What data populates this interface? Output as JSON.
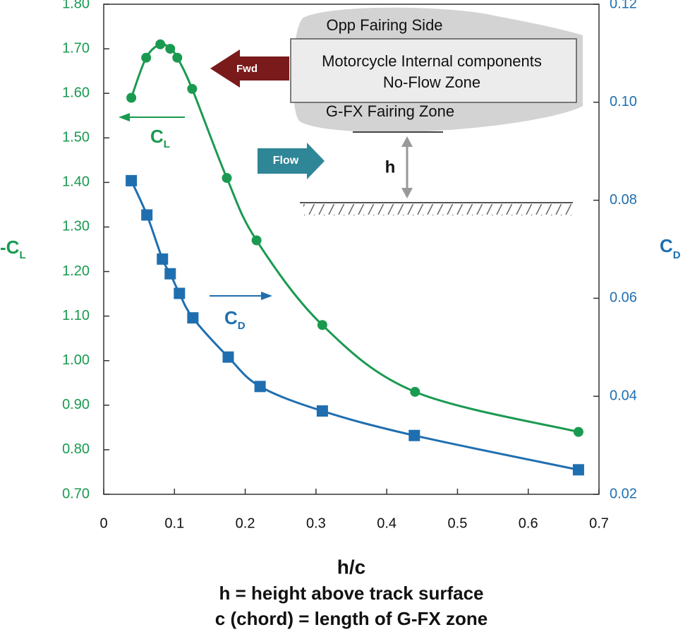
{
  "chart_data": {
    "type": "line",
    "xlabel": "h/c",
    "notes": [
      "h = height above track surface",
      "c (chord) = length of G-FX zone"
    ],
    "ylabel": {
      "main": "-C",
      "sub": "L"
    },
    "y2label": {
      "main": "C",
      "sub": "D"
    },
    "xlim": [
      0,
      0.7
    ],
    "xticks": [
      0,
      0.1,
      0.2,
      0.3,
      0.4,
      0.5,
      0.6,
      0.7
    ],
    "ylim": [
      0.7,
      1.8
    ],
    "yticks": [
      {
        "value": 0.7,
        "label": "0.70"
      },
      {
        "value": 0.8,
        "label": "0.80"
      },
      {
        "value": 0.9,
        "label": "0.90"
      },
      {
        "value": 1.0,
        "label": "1.00"
      },
      {
        "value": 1.1,
        "label": "1.10"
      },
      {
        "value": 1.2,
        "label": "1.20"
      },
      {
        "value": 1.3,
        "label": "1.30"
      },
      {
        "value": 1.4,
        "label": "1.40"
      },
      {
        "value": 1.5,
        "label": "1.50"
      },
      {
        "value": 1.6,
        "label": "1.60"
      },
      {
        "value": 1.7,
        "label": "1.70"
      },
      {
        "value": 1.8,
        "label": "1.80"
      }
    ],
    "y2lim": [
      0.02,
      0.12
    ],
    "y2ticks": [
      0.02,
      0.04,
      0.06,
      0.08,
      {
        "value": 0.1,
        "label": "0.10"
      },
      0.12
    ],
    "series": [
      {
        "name": "C",
        "sub": "L",
        "color": "#1a9a50",
        "marker": "circle",
        "x": [
          0.039,
          0.06,
          0.08,
          0.094,
          0.104,
          0.125,
          0.174,
          0.216,
          0.309,
          0.44,
          0.671
        ],
        "values": [
          1.59,
          1.68,
          1.71,
          1.7,
          1.68,
          1.61,
          1.41,
          1.27,
          1.08,
          0.93,
          0.84
        ]
      },
      {
        "name": "C",
        "sub": "D",
        "color": "#1f6fb0",
        "marker": "square",
        "axis": "y2",
        "x": [
          0.039,
          0.061,
          0.083,
          0.094,
          0.107,
          0.126,
          0.176,
          0.221,
          0.309,
          0.439,
          0.671
        ],
        "values": [
          0.084,
          0.077,
          0.068,
          0.065,
          0.061,
          0.056,
          0.048,
          0.042,
          0.037,
          0.032,
          0.025
        ]
      }
    ],
    "annotations": {
      "opp": "Opp Fairing Side",
      "internal1": "Motorcycle Internal components",
      "internal2": "No-Flow Zone",
      "gfx": "G-FX Fairing Zone",
      "fwd": "Fwd",
      "flow": "Flow",
      "h": "h"
    }
  }
}
